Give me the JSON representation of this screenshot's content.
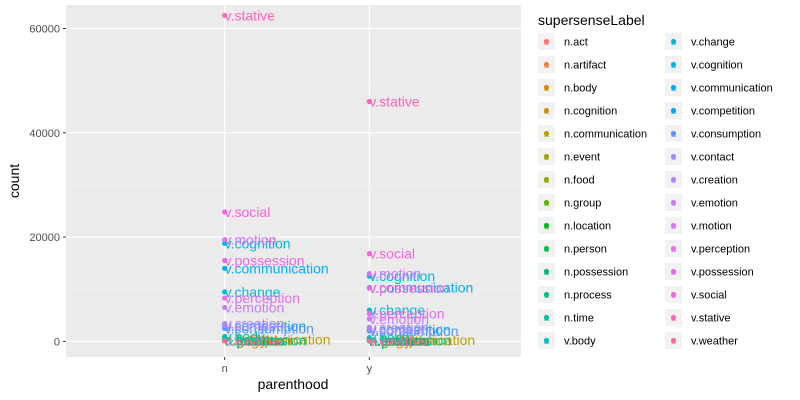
{
  "chart_data": {
    "type": "scatter",
    "xlabel": "parenthood",
    "ylabel": "count",
    "categories": [
      "n",
      "y"
    ],
    "ylim": [
      -3000,
      64500
    ],
    "yticks": [
      0,
      20000,
      40000,
      60000
    ],
    "ytick_labels": [
      "0",
      "20000",
      "40000",
      "60000"
    ],
    "grid": true,
    "legend_title": "supersenseLabel",
    "legend_position": "right",
    "series": [
      {
        "name": "n.act",
        "color": "#F8766D",
        "values": [
          300,
          250
        ]
      },
      {
        "name": "n.artifact",
        "color": "#EE8043",
        "values": [
          250,
          200
        ]
      },
      {
        "name": "n.body",
        "color": "#E08B00",
        "values": [
          220,
          180
        ]
      },
      {
        "name": "n.cognition",
        "color": "#D19300",
        "values": [
          200,
          170
        ]
      },
      {
        "name": "n.communication",
        "color": "#BD9D00",
        "values": [
          350,
          300
        ]
      },
      {
        "name": "n.event",
        "color": "#A3A500",
        "values": [
          180,
          150
        ]
      },
      {
        "name": "n.food",
        "color": "#88AC00",
        "values": [
          150,
          130
        ]
      },
      {
        "name": "n.group",
        "color": "#5FB300",
        "values": [
          250,
          220
        ]
      },
      {
        "name": "n.location",
        "color": "#00B81F",
        "values": [
          200,
          180
        ]
      },
      {
        "name": "n.person",
        "color": "#00BB4E",
        "values": [
          300,
          260
        ]
      },
      {
        "name": "n.possession",
        "color": "#00BE70",
        "values": [
          150,
          130
        ]
      },
      {
        "name": "n.process",
        "color": "#00BF8B",
        "values": [
          120,
          110
        ]
      },
      {
        "name": "n.time",
        "color": "#00C0A3",
        "values": [
          200,
          180
        ]
      },
      {
        "name": "v.body",
        "color": "#00BFBA",
        "values": [
          900,
          700
        ]
      },
      {
        "name": "v.change",
        "color": "#00BCD3",
        "values": [
          9500,
          6000
        ]
      },
      {
        "name": "v.cognition",
        "color": "#00B7E7",
        "values": [
          18800,
          12500
        ]
      },
      {
        "name": "v.communication",
        "color": "#00ADFA",
        "values": [
          14000,
          10300
        ]
      },
      {
        "name": "v.competition",
        "color": "#00A5FF",
        "values": [
          2900,
          2300
        ]
      },
      {
        "name": "v.consumption",
        "color": "#5996FF",
        "values": [
          2500,
          2000
        ]
      },
      {
        "name": "v.contact",
        "color": "#9590FF",
        "values": [
          3000,
          2400
        ]
      },
      {
        "name": "v.creation",
        "color": "#AE87FF",
        "values": [
          3400,
          2700
        ]
      },
      {
        "name": "v.emotion",
        "color": "#C77CFF",
        "values": [
          6500,
          4300
        ]
      },
      {
        "name": "v.motion",
        "color": "#D575FE",
        "values": [
          19500,
          13000
        ]
      },
      {
        "name": "v.perception",
        "color": "#E76BF3",
        "values": [
          8300,
          5300
        ]
      },
      {
        "name": "v.possession",
        "color": "#F066E9",
        "values": [
          15500,
          10200
        ]
      },
      {
        "name": "v.social",
        "color": "#FA62DB",
        "values": [
          24800,
          16800
        ]
      },
      {
        "name": "v.stative",
        "color": "#FF62BC",
        "values": [
          62500,
          46000
        ]
      },
      {
        "name": "v.weather",
        "color": "#FF6C91",
        "values": [
          60,
          50
        ]
      }
    ]
  }
}
